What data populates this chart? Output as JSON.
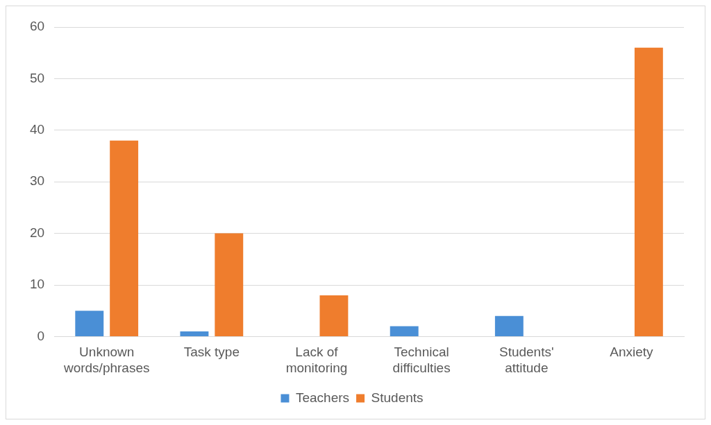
{
  "chart_data": {
    "type": "bar",
    "categories": [
      "Unknown words/phrases",
      "Task type",
      "Lack of monitoring",
      "Technical difficulties",
      "Students' attitude",
      "Anxiety"
    ],
    "series": [
      {
        "name": "Teachers",
        "color": "#4a8fd6",
        "values": [
          5,
          1,
          0,
          2,
          4,
          0
        ]
      },
      {
        "name": "Students",
        "color": "#ef7d2d",
        "values": [
          38,
          20,
          8,
          0,
          0,
          56
        ]
      }
    ],
    "ylim": [
      0,
      60
    ],
    "yticks": [
      0,
      10,
      20,
      30,
      40,
      50,
      60
    ],
    "grid": "y",
    "legend": "bottom"
  }
}
